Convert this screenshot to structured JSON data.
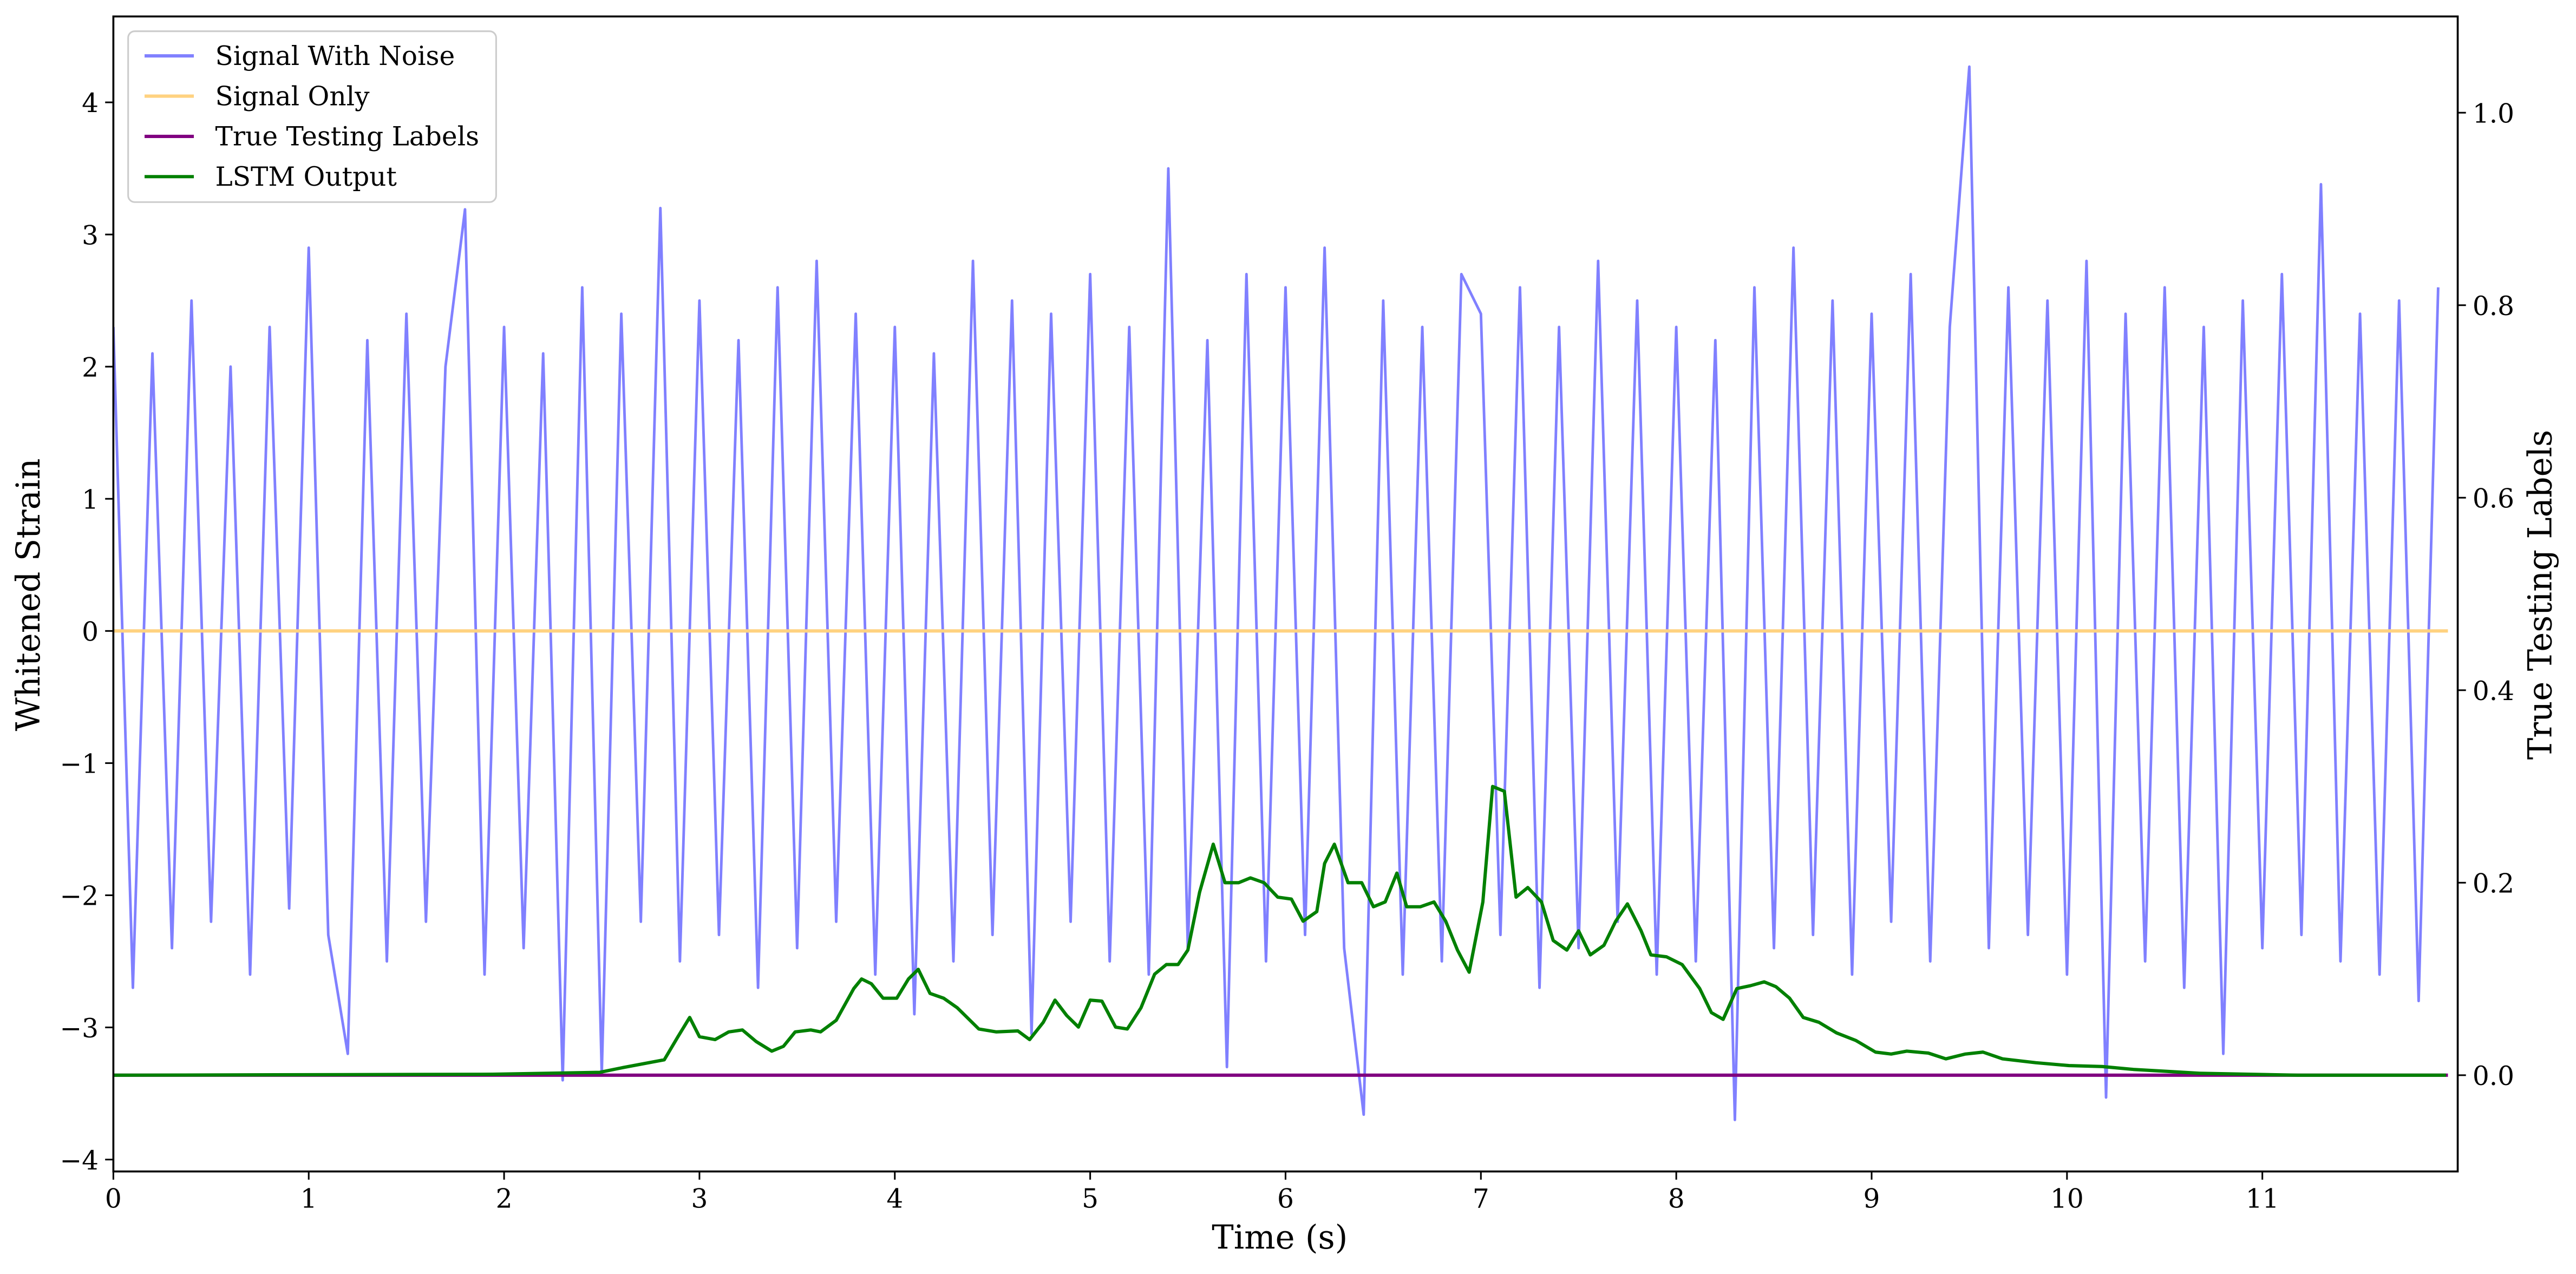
{
  "chart_data": {
    "type": "line",
    "xlabel": "Time (s)",
    "ylabel": "Whitened Strain",
    "y2label": "True Testing Labels",
    "xlim": [
      0,
      12
    ],
    "ylim": [
      -4.09,
      4.65
    ],
    "y2lim": [
      -0.1,
      1.1
    ],
    "xticks": [
      0,
      1,
      2,
      3,
      4,
      5,
      6,
      7,
      8,
      9,
      10,
      11
    ],
    "yticks": [
      {
        "value": -4,
        "label": "−4"
      },
      {
        "value": -3,
        "label": "−3"
      },
      {
        "value": -2,
        "label": "−2"
      },
      {
        "value": -1,
        "label": "−1"
      },
      0,
      1,
      2,
      3,
      4
    ],
    "y2ticks": [
      {
        "value": 0,
        "label": "0.0"
      },
      {
        "value": 0.2,
        "label": "0.2"
      },
      {
        "value": 0.4,
        "label": "0.4"
      },
      {
        "value": 0.6,
        "label": "0.6"
      },
      {
        "value": 0.8,
        "label": "0.8"
      },
      {
        "value": 1.0,
        "label": "1.0"
      }
    ],
    "legend": "upper left",
    "series": [
      {
        "name": "Signal With Noise",
        "color": "#8080ff",
        "axis": "y",
        "x": [
          0,
          0.1,
          0.2,
          0.3,
          0.4,
          0.5,
          0.6,
          0.7,
          0.8,
          0.9,
          1,
          1.1,
          1.2,
          1.3,
          1.4,
          1.5,
          1.6,
          1.7,
          1.8,
          1.9,
          2,
          2.1,
          2.2,
          2.3,
          2.4,
          2.5,
          2.6,
          2.7,
          2.8,
          2.9,
          3,
          3.1,
          3.2,
          3.3,
          3.4,
          3.5,
          3.6,
          3.7,
          3.8,
          3.9,
          4,
          4.1,
          4.2,
          4.3,
          4.4,
          4.5,
          4.6,
          4.7,
          4.8,
          4.9,
          5,
          5.1,
          5.2,
          5.3,
          5.4,
          5.5,
          5.6,
          5.7,
          5.8,
          5.9,
          6,
          6.1,
          6.2,
          6.3,
          6.4,
          6.5,
          6.6,
          6.7,
          6.8,
          6.9,
          7,
          7.1,
          7.2,
          7.3,
          7.4,
          7.5,
          7.6,
          7.7,
          7.8,
          7.9,
          8,
          8.1,
          8.2,
          8.3,
          8.4,
          8.5,
          8.6,
          8.7,
          8.8,
          8.9,
          9,
          9.1,
          9.2,
          9.3,
          9.4,
          9.5,
          9.6,
          9.7,
          9.8,
          9.9,
          10,
          10.1,
          10.2,
          10.3,
          10.4,
          10.5,
          10.6,
          10.7,
          10.8,
          10.9,
          11,
          11.1,
          11.2,
          11.3,
          11.4,
          11.5,
          11.6,
          11.7,
          11.8,
          11.9
        ],
        "values": [
          2.3,
          -2.7,
          2.1,
          -2.4,
          2.5,
          -2.2,
          2.0,
          -2.6,
          2.3,
          -2.1,
          2.9,
          -2.3,
          -3.2,
          2.2,
          -2.5,
          2.4,
          -2.2,
          2.0,
          3.19,
          -2.6,
          2.3,
          -2.4,
          2.1,
          -3.4,
          2.6,
          -3.35,
          2.4,
          -2.2,
          3.2,
          -2.5,
          2.5,
          -2.3,
          2.2,
          -2.7,
          2.6,
          -2.4,
          2.8,
          -2.2,
          2.4,
          -2.6,
          2.3,
          -2.9,
          2.1,
          -2.5,
          2.8,
          -2.3,
          2.5,
          -3.05,
          2.4,
          -2.2,
          2.7,
          -2.5,
          2.3,
          -2.6,
          3.5,
          -2.4,
          2.2,
          -3.3,
          2.7,
          -2.5,
          2.6,
          -2.3,
          2.9,
          -2.4,
          -3.66,
          2.5,
          -2.6,
          2.3,
          -2.5,
          2.7,
          2.4,
          -2.3,
          2.6,
          -2.7,
          2.3,
          -2.4,
          2.8,
          -2.2,
          2.5,
          -2.6,
          2.3,
          -2.5,
          2.2,
          -3.7,
          2.6,
          -2.4,
          2.9,
          -2.3,
          2.5,
          -2.6,
          2.4,
          -2.2,
          2.7,
          -2.5,
          2.3,
          4.27,
          -2.4,
          2.6,
          -2.3,
          2.5,
          -2.6,
          2.8,
          -3.53,
          2.4,
          -2.5,
          2.6,
          -2.7,
          2.3,
          -3.2,
          2.5,
          -2.4,
          2.7,
          -2.3,
          3.38,
          -2.5,
          2.4,
          -2.6,
          2.5,
          -2.8,
          2.6
        ]
      },
      {
        "name": "Signal Only",
        "color": "#ffd280",
        "axis": "y",
        "x": [
          0,
          11.95
        ],
        "values": [
          0,
          0
        ]
      },
      {
        "name": "True Testing Labels",
        "color": "#800080",
        "axis": "y2",
        "x": [
          0,
          11.95
        ],
        "values": [
          0,
          0
        ]
      },
      {
        "name": "LSTM Output",
        "color": "#008000",
        "axis": "y2",
        "x": [
          0,
          1.94,
          2.49,
          2.61,
          2.82,
          2.89,
          2.95,
          3.0,
          3.08,
          3.15,
          3.22,
          3.29,
          3.37,
          3.43,
          3.49,
          3.57,
          3.62,
          3.7,
          3.79,
          3.83,
          3.88,
          3.94,
          4.01,
          4.07,
          4.12,
          4.18,
          4.25,
          4.32,
          4.43,
          4.52,
          4.63,
          4.69,
          4.76,
          4.82,
          4.88,
          4.94,
          5.0,
          5.06,
          5.13,
          5.19,
          5.26,
          5.33,
          5.39,
          5.45,
          5.5,
          5.56,
          5.63,
          5.69,
          5.76,
          5.82,
          5.89,
          5.96,
          6.03,
          6.09,
          6.16,
          6.2,
          6.25,
          6.32,
          6.39,
          6.45,
          6.51,
          6.57,
          6.62,
          6.69,
          6.76,
          6.82,
          6.88,
          6.94,
          7.01,
          7.06,
          7.12,
          7.18,
          7.24,
          7.31,
          7.37,
          7.44,
          7.5,
          7.56,
          7.63,
          7.69,
          7.75,
          7.82,
          7.87,
          7.95,
          8.03,
          8.12,
          8.18,
          8.24,
          8.31,
          8.38,
          8.45,
          8.51,
          8.58,
          8.65,
          8.73,
          8.82,
          8.92,
          9.02,
          9.1,
          9.18,
          9.29,
          9.38,
          9.48,
          9.57,
          9.67,
          9.84,
          10.01,
          10.18,
          10.34,
          10.51,
          10.68,
          11.18,
          11.94
        ],
        "values": [
          0,
          0.001,
          0.003,
          0.008,
          0.016,
          0.04,
          0.06,
          0.04,
          0.037,
          0.045,
          0.047,
          0.035,
          0.025,
          0.03,
          0.045,
          0.047,
          0.045,
          0.057,
          0.09,
          0.1,
          0.095,
          0.08,
          0.08,
          0.1,
          0.11,
          0.085,
          0.08,
          0.07,
          0.048,
          0.045,
          0.046,
          0.037,
          0.055,
          0.078,
          0.062,
          0.05,
          0.078,
          0.077,
          0.05,
          0.048,
          0.07,
          0.105,
          0.115,
          0.115,
          0.13,
          0.19,
          0.24,
          0.2,
          0.2,
          0.205,
          0.2,
          0.185,
          0.183,
          0.16,
          0.17,
          0.22,
          0.24,
          0.2,
          0.2,
          0.175,
          0.18,
          0.21,
          0.175,
          0.175,
          0.18,
          0.16,
          0.13,
          0.107,
          0.18,
          0.3,
          0.295,
          0.185,
          0.195,
          0.18,
          0.14,
          0.13,
          0.15,
          0.125,
          0.135,
          0.16,
          0.178,
          0.15,
          0.125,
          0.123,
          0.115,
          0.09,
          0.065,
          0.058,
          0.09,
          0.093,
          0.097,
          0.092,
          0.08,
          0.06,
          0.055,
          0.044,
          0.036,
          0.024,
          0.022,
          0.025,
          0.023,
          0.017,
          0.022,
          0.024,
          0.017,
          0.013,
          0.01,
          0.009,
          0.006,
          0.004,
          0.002,
          0,
          0
        ]
      }
    ]
  }
}
